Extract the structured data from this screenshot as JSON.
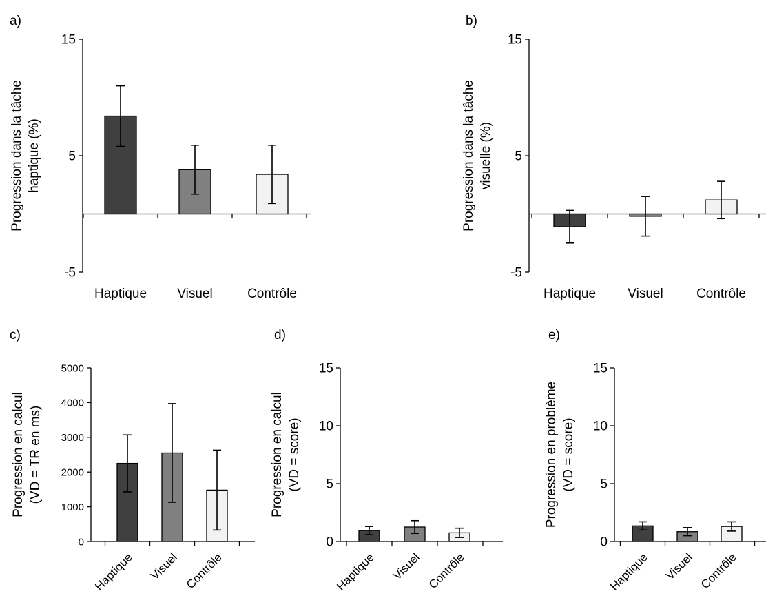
{
  "figure_label": "",
  "chart_data": [
    {
      "type": "bar",
      "panel": "a)",
      "categories": [
        "Haptique",
        "Visuel",
        "Contrôle"
      ],
      "values": [
        8.4,
        3.8,
        3.4
      ],
      "errors": [
        2.6,
        2.1,
        2.5
      ],
      "ylabel": [
        "Progression dans la tâche",
        "haptique (%)"
      ],
      "ylim": [
        -5,
        15
      ],
      "yticks": [
        -5,
        5,
        15
      ],
      "colors": [
        "#404040",
        "#808080",
        "#f2f2f2"
      ],
      "tick_rotation": 0
    },
    {
      "type": "bar",
      "panel": "b)",
      "categories": [
        "Haptique",
        "Visuel",
        "Contrôle"
      ],
      "values": [
        -1.1,
        -0.2,
        1.2
      ],
      "errors": [
        1.4,
        1.7,
        1.6
      ],
      "ylabel": [
        "Progression dans la tâche",
        "visuelle (%)"
      ],
      "ylim": [
        -5,
        15
      ],
      "yticks": [
        -5,
        5,
        15
      ],
      "colors": [
        "#404040",
        "#808080",
        "#f2f2f2"
      ],
      "tick_rotation": 0
    },
    {
      "type": "bar",
      "panel": "c)",
      "categories": [
        "Haptique",
        "Visuel",
        "Contrôle"
      ],
      "values": [
        2250,
        2550,
        1480
      ],
      "errors": [
        820,
        1420,
        1150
      ],
      "ylabel": [
        "Progression en calcul",
        "(VD = TR en ms)"
      ],
      "ylim": [
        0,
        5000
      ],
      "yticks": [
        0,
        1000,
        2000,
        3000,
        4000,
        5000
      ],
      "colors": [
        "#404040",
        "#808080",
        "#f2f2f2"
      ],
      "tick_rotation": -45
    },
    {
      "type": "bar",
      "panel": "d)",
      "categories": [
        "Haptique",
        "Visuel",
        "Contrôle"
      ],
      "values": [
        0.95,
        1.25,
        0.75
      ],
      "errors": [
        0.35,
        0.55,
        0.4
      ],
      "ylabel": [
        "Progression en calcul",
        "(VD = score)"
      ],
      "ylim": [
        0,
        15
      ],
      "yticks": [
        0,
        5,
        10,
        15
      ],
      "colors": [
        "#404040",
        "#808080",
        "#f2f2f2"
      ],
      "tick_rotation": -45
    },
    {
      "type": "bar",
      "panel": "e)",
      "categories": [
        "Haptique",
        "Visuel",
        "Contrôle"
      ],
      "values": [
        1.35,
        0.85,
        1.3
      ],
      "errors": [
        0.35,
        0.35,
        0.4
      ],
      "ylabel": [
        "Progression en problème",
        "(VD = score)"
      ],
      "ylim": [
        0,
        15
      ],
      "yticks": [
        0,
        5,
        10,
        15
      ],
      "colors": [
        "#404040",
        "#808080",
        "#f2f2f2"
      ],
      "tick_rotation": -45
    }
  ]
}
